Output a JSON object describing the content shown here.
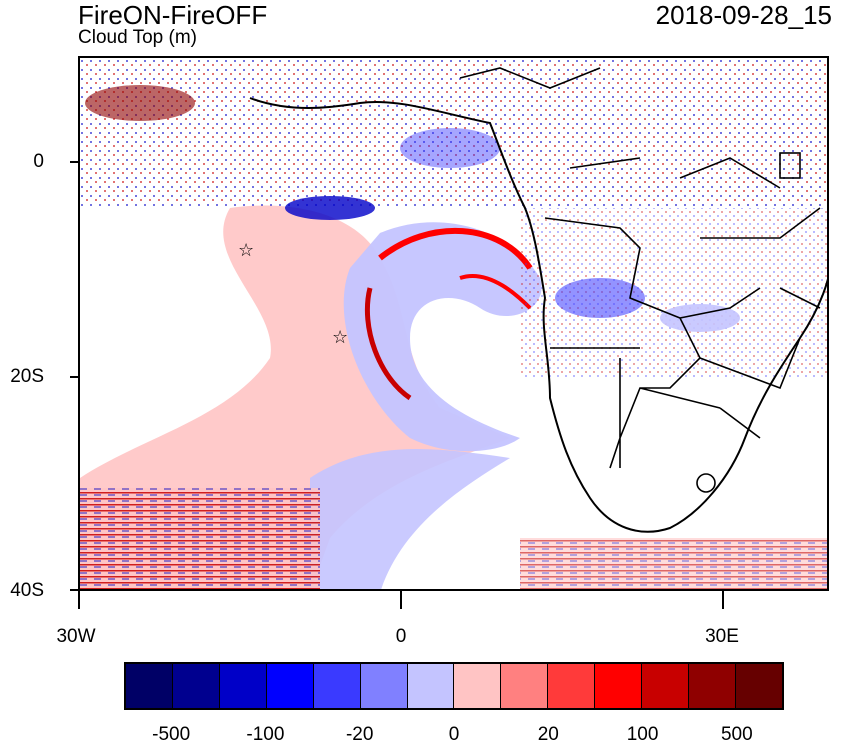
{
  "title": "FireON-FireOFF",
  "subtitle": "Cloud Top (m)",
  "datetime": "2018-09-28_15",
  "axes": {
    "y_labels": [
      "0",
      "20S",
      "40S"
    ],
    "x_labels": [
      "30W",
      "0",
      "30E"
    ]
  },
  "colorbar": {
    "colors": [
      "#000066",
      "#00008f",
      "#0000c8",
      "#0000ff",
      "#3a3aff",
      "#8080ff",
      "#c4c4ff",
      "#ffc4c4",
      "#ff8080",
      "#ff3a3a",
      "#ff0000",
      "#c80000",
      "#8f0000",
      "#660000"
    ],
    "labels": [
      "-500",
      "-100",
      "-20",
      "0",
      "20",
      "100",
      "500"
    ]
  },
  "markers": [
    {
      "name": "star-marker-1",
      "symbol": "☆"
    },
    {
      "name": "star-marker-2",
      "symbol": "☆"
    }
  ]
}
